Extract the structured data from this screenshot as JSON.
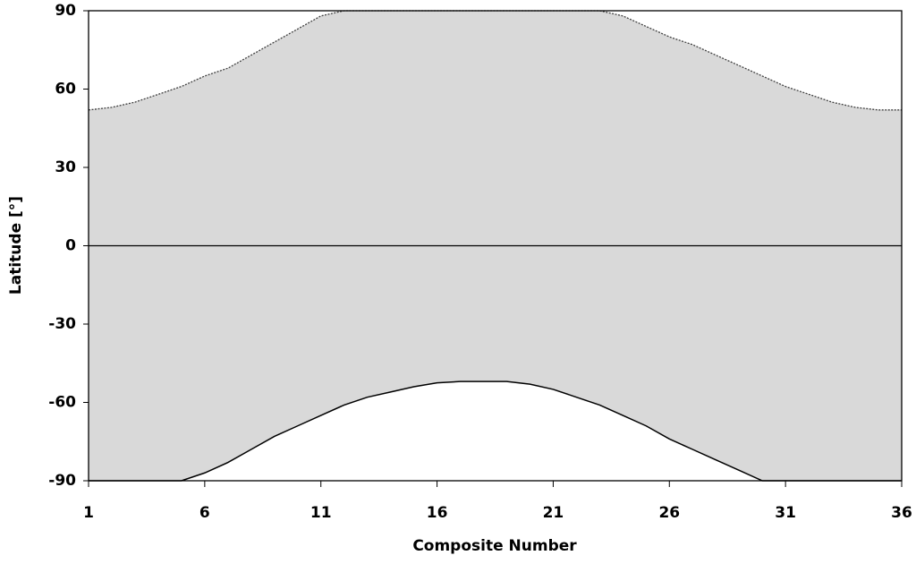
{
  "chart_data": {
    "type": "band",
    "x_label": "Composite Number",
    "y_label": "Latitude [°]",
    "x": [
      1,
      2,
      3,
      4,
      5,
      6,
      7,
      8,
      9,
      10,
      11,
      12,
      13,
      14,
      15,
      16,
      17,
      18,
      19,
      20,
      21,
      22,
      23,
      24,
      25,
      26,
      27,
      28,
      29,
      30,
      31,
      32,
      33,
      34,
      35,
      36
    ],
    "series": [
      {
        "color": "#404040",
        "values": [
          52,
          53,
          55,
          58,
          61,
          65,
          68,
          73,
          78,
          83,
          88,
          90,
          90,
          90,
          90,
          90,
          90,
          90,
          90,
          90,
          90,
          90,
          90,
          88,
          84,
          80,
          77,
          73,
          69,
          65,
          61,
          58,
          55,
          53,
          52,
          52
        ]
      },
      {
        "color": "#000000",
        "values": [
          -90,
          -90,
          -90,
          -90,
          -90,
          -87,
          -83,
          -78,
          -73,
          -69,
          -65,
          -61,
          -58,
          -56,
          -54,
          -52.5,
          -52,
          -52,
          -52,
          -53,
          -55,
          -58,
          -61,
          -65,
          -69,
          -74,
          -78,
          -82,
          -86,
          -90,
          -90,
          -90,
          -90,
          -90,
          -90,
          -90
        ]
      }
    ],
    "fill_color": "#d9d9d9",
    "xlim": [
      1,
      36
    ],
    "xticks": [
      1,
      6,
      11,
      16,
      21,
      26,
      31,
      36
    ],
    "ylim": [
      -90,
      90
    ],
    "yticks": [
      -90,
      -60,
      -30,
      0,
      30,
      60,
      90
    ]
  }
}
